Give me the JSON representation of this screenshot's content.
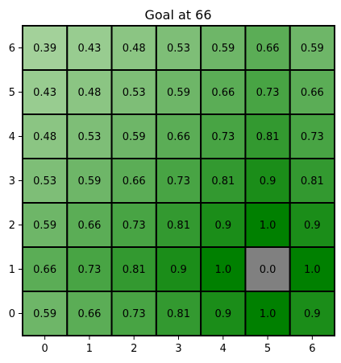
{
  "chart_data": {
    "type": "heatmap",
    "title": "Goal at 66",
    "xlabel": "",
    "ylabel": "",
    "x_ticks": [
      "0",
      "1",
      "2",
      "3",
      "4",
      "5",
      "6"
    ],
    "y_ticks": [
      "0",
      "1",
      "2",
      "3",
      "4",
      "5",
      "6"
    ],
    "grid": true,
    "cell_labels_visible": true,
    "rows": [
      {
        "y": "6",
        "values": [
          "0.39",
          "0.43",
          "0.48",
          "0.53",
          "0.59",
          "0.66",
          "0.59"
        ]
      },
      {
        "y": "5",
        "values": [
          "0.43",
          "0.48",
          "0.53",
          "0.59",
          "0.66",
          "0.73",
          "0.66"
        ]
      },
      {
        "y": "4",
        "values": [
          "0.48",
          "0.53",
          "0.59",
          "0.66",
          "0.73",
          "0.81",
          "0.73"
        ]
      },
      {
        "y": "3",
        "values": [
          "0.53",
          "0.59",
          "0.66",
          "0.73",
          "0.81",
          "0.9",
          "0.81"
        ]
      },
      {
        "y": "2",
        "values": [
          "0.59",
          "0.66",
          "0.73",
          "0.81",
          "0.9",
          "1.0",
          "0.9"
        ]
      },
      {
        "y": "1",
        "values": [
          "0.66",
          "0.73",
          "0.81",
          "0.9",
          "1.0",
          "0.0",
          "1.0"
        ]
      },
      {
        "y": "0",
        "values": [
          "0.59",
          "0.66",
          "0.73",
          "0.81",
          "0.9",
          "1.0",
          "0.9"
        ]
      }
    ],
    "goal_cell": {
      "x": "5",
      "y": "1"
    },
    "colors": {
      "high": "#008000",
      "low": "#a3d19a",
      "goal": "#808080",
      "grid_line": "#000000",
      "text": "#000000"
    }
  }
}
